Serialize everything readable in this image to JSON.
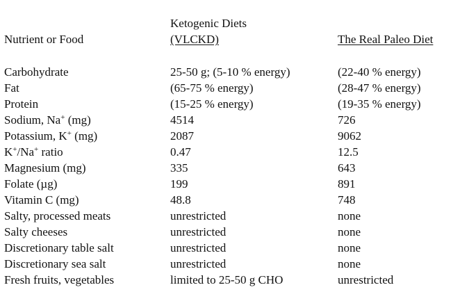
{
  "headers": {
    "nutrient": "Nutrient or Food",
    "keto_top": "Ketogenic Diets",
    "keto_sub": "(VLCKD)",
    "paleo": "The Real Paleo Diet"
  },
  "rows": [
    {
      "name": "Carbohydrate",
      "keto": "25-50 g; (5-10 % energy)",
      "paleo": "(22-40 % energy)"
    },
    {
      "name": "Fat",
      "keto": "(65-75 % energy)",
      "paleo": "(28-47 % energy)"
    },
    {
      "name": "Protein",
      "keto": "(15-25 % energy)",
      "paleo": "(19-35 % energy)"
    },
    {
      "name_pre": "Sodium, Na",
      "name_sup": "+",
      "name_post": " (mg)",
      "keto": "4514",
      "paleo": "726"
    },
    {
      "name_pre": "Potassium, K",
      "name_sup": "+",
      "name_post": " (mg)",
      "keto": "2087",
      "paleo": "9062"
    },
    {
      "name_pre": "K",
      "name_sup": "+",
      "name_mid": "/Na",
      "name_sup2": "+",
      "name_post": " ratio",
      "keto": "0.47",
      "paleo": "12.5"
    },
    {
      "name": "Magnesium (mg)",
      "keto": "335",
      "paleo": "643"
    },
    {
      "name": "Folate (µg)",
      "keto": "199",
      "paleo": "891"
    },
    {
      "name": "Vitamin C (mg)",
      "keto": "48.8",
      "paleo": "748"
    },
    {
      "name": "Salty, processed meats",
      "keto": "unrestricted",
      "paleo": "none"
    },
    {
      "name": "Salty cheeses",
      "keto": "unrestricted",
      "paleo": "none"
    },
    {
      "name": "Discretionary table salt",
      "keto": "unrestricted",
      "paleo": "none"
    },
    {
      "name": "Discretionary sea salt",
      "keto": "unrestricted",
      "paleo": "none"
    },
    {
      "name": "Fresh fruits, vegetables",
      "keto": "limited to 25-50 g CHO",
      "paleo": "unrestricted"
    }
  ]
}
